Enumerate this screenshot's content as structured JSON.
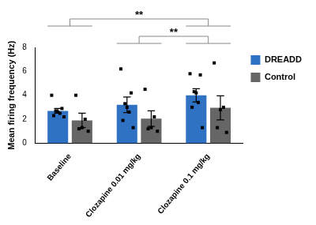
{
  "chart_data": {
    "type": "bar",
    "y_label": "Mean firing frequency (Hz)",
    "categories": [
      "Baseline",
      "Clozapine 0.01 mg/kg",
      "Clozapine 0.1 mg/kg"
    ],
    "series": [
      {
        "name": "DREADD",
        "color": "#2f72c4",
        "values": [
          2.7,
          3.2,
          4.0
        ],
        "errors": [
          0.2,
          0.65,
          0.55
        ],
        "points": [
          [
            4.0,
            2.9,
            2.7,
            2.6,
            2.5,
            2.3,
            2.2
          ],
          [
            6.2,
            4.2,
            3.3,
            3.0,
            2.6,
            1.9,
            1.3
          ],
          [
            5.8,
            5.7,
            4.3,
            4.2,
            3.4,
            3.0,
            1.3
          ]
        ]
      },
      {
        "name": "Control",
        "color": "#666666",
        "values": [
          1.9,
          2.05,
          2.95
        ],
        "errors": [
          0.6,
          0.65,
          1.0
        ],
        "points": [
          [
            4.0,
            2.0,
            1.3,
            1.2,
            1.0
          ],
          [
            4.5,
            2.2,
            1.3,
            1.2,
            1.0
          ],
          [
            6.7,
            3.0,
            2.8,
            1.3,
            0.9
          ]
        ]
      }
    ],
    "ylim": [
      0,
      8
    ],
    "yticks": [
      0,
      2,
      4,
      6,
      8
    ],
    "grid": false,
    "legend": "top-right",
    "annotations": [
      {
        "text": "**",
        "from": "Baseline",
        "to": "Clozapine 0.1 mg/kg"
      },
      {
        "text": "**",
        "from": "Clozapine 0.01 mg/kg",
        "to": "Clozapine 0.1 mg/kg"
      }
    ]
  }
}
